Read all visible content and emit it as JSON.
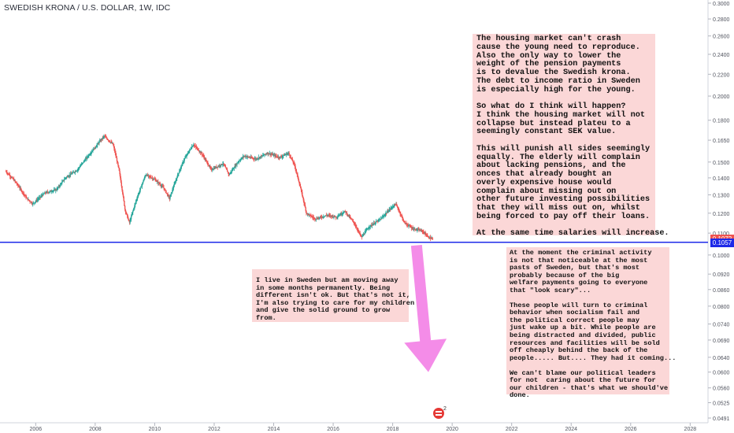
{
  "chart_data": {
    "type": "candlestick",
    "title": "SWEDISH KRONA / U.S. DOLLAR, 1W, IDC",
    "x_ticks": [
      "2006",
      "2008",
      "2010",
      "2012",
      "2014",
      "2016",
      "2018",
      "2020",
      "2022",
      "2024",
      "2026",
      "2028"
    ],
    "y_ticks": [
      "0.3000",
      "0.2800",
      "0.2600",
      "0.2400",
      "0.2200",
      "0.2000",
      "0.1800",
      "0.1650",
      "0.1500",
      "0.1400",
      "0.1300",
      "0.1200",
      "0.1100",
      "0.1000",
      "0.0920",
      "0.0860",
      "0.0800",
      "0.0740",
      "0.0690",
      "0.0640",
      "0.0600",
      "0.0560",
      "0.0525",
      "0.0491"
    ],
    "y_scale": "log",
    "ylim": [
      0.0491,
      0.3
    ],
    "xlim": [
      2004.8,
      2028.6
    ],
    "price_path": [
      {
        "x": 2005.0,
        "y": 0.144
      },
      {
        "x": 2005.3,
        "y": 0.138
      },
      {
        "x": 2005.7,
        "y": 0.128
      },
      {
        "x": 2005.9,
        "y": 0.125
      },
      {
        "x": 2006.3,
        "y": 0.131
      },
      {
        "x": 2006.7,
        "y": 0.133
      },
      {
        "x": 2007.0,
        "y": 0.14
      },
      {
        "x": 2007.4,
        "y": 0.145
      },
      {
        "x": 2007.8,
        "y": 0.155
      },
      {
        "x": 2008.0,
        "y": 0.16
      },
      {
        "x": 2008.3,
        "y": 0.168
      },
      {
        "x": 2008.6,
        "y": 0.162
      },
      {
        "x": 2008.8,
        "y": 0.145
      },
      {
        "x": 2009.0,
        "y": 0.122
      },
      {
        "x": 2009.15,
        "y": 0.115
      },
      {
        "x": 2009.4,
        "y": 0.128
      },
      {
        "x": 2009.7,
        "y": 0.142
      },
      {
        "x": 2010.0,
        "y": 0.139
      },
      {
        "x": 2010.3,
        "y": 0.134
      },
      {
        "x": 2010.5,
        "y": 0.128
      },
      {
        "x": 2010.8,
        "y": 0.143
      },
      {
        "x": 2011.0,
        "y": 0.152
      },
      {
        "x": 2011.3,
        "y": 0.162
      },
      {
        "x": 2011.6,
        "y": 0.155
      },
      {
        "x": 2011.9,
        "y": 0.145
      },
      {
        "x": 2012.3,
        "y": 0.149
      },
      {
        "x": 2012.5,
        "y": 0.142
      },
      {
        "x": 2012.8,
        "y": 0.15
      },
      {
        "x": 2013.0,
        "y": 0.154
      },
      {
        "x": 2013.4,
        "y": 0.152
      },
      {
        "x": 2013.8,
        "y": 0.156
      },
      {
        "x": 2014.2,
        "y": 0.153
      },
      {
        "x": 2014.5,
        "y": 0.156
      },
      {
        "x": 2014.7,
        "y": 0.148
      },
      {
        "x": 2014.9,
        "y": 0.134
      },
      {
        "x": 2015.1,
        "y": 0.12
      },
      {
        "x": 2015.4,
        "y": 0.117
      },
      {
        "x": 2015.8,
        "y": 0.119
      },
      {
        "x": 2016.1,
        "y": 0.118
      },
      {
        "x": 2016.4,
        "y": 0.121
      },
      {
        "x": 2016.7,
        "y": 0.115
      },
      {
        "x": 2016.95,
        "y": 0.108
      },
      {
        "x": 2017.2,
        "y": 0.113
      },
      {
        "x": 2017.6,
        "y": 0.117
      },
      {
        "x": 2017.9,
        "y": 0.122
      },
      {
        "x": 2018.1,
        "y": 0.125
      },
      {
        "x": 2018.4,
        "y": 0.115
      },
      {
        "x": 2018.7,
        "y": 0.112
      },
      {
        "x": 2019.0,
        "y": 0.111
      },
      {
        "x": 2019.2,
        "y": 0.108
      },
      {
        "x": 2019.35,
        "y": 0.1072
      }
    ],
    "horizontal_line": {
      "value": 0.1057,
      "color": "#1e2ae8"
    },
    "last_price": {
      "label": "0.1072",
      "color": "#ef5350"
    },
    "line_label": {
      "label": "0.1057",
      "color": "#1e2ae8"
    },
    "arrow": {
      "color": "#f48ce8",
      "from": {
        "x": 2018.8,
        "y": 0.1043
      },
      "to": {
        "x": 2019.2,
        "y": 0.06
      }
    },
    "annotations": {
      "right_top": "The housing market can't crash\ncause the young need to reproduce.\nAlso the only way to lower the\nweight of the pension payments\nis to devalue the Swedish krona.\nThe debt to income ratio in Sweden\nis especially high for the young.\n\nSo what do I think will happen?\nI think the housing market will not\ncollapse but instead plateu to a\nseemingly constant SEK value.\n\nThis will punish all sides seemingly\nequally. The elderly will complain\nabout lacking pensions, and the\nonces that already bought an\noverly expensive house would\ncomplain about missing out on\nother future investing possibilities\nthat they will miss out on, whilst\nbeing forced to pay off their loans.\n\nAt the same time salaries will increase.",
      "left": "I live in Sweden but am moving away\nin some months permanently. Being\ndifferent isn't ok. But that's not it,\nI'm also trying to care for my children\nand give the solid ground to grow\nfrom.",
      "right_bottom": "At the moment the criminal activity\nis not that noticeable at the most\npasts of Sweden, but that's most\nprobably because of the big\nwelfare payments going to everyone\nthat \"look scary\"...\n\nThese people will turn to criminal\nbehavior when socialism fail and\nthe political correct people may\njust wake up a bit. While people are\nbeing distracted and divided, public\nresources and facilities will be sold\noff cheaply behind the back of the\npeople..... But.... They had it coming...\n\nWe can't blame our political leaders\nfor not  caring about the future for\nour children - that's what we should've\ndone."
    },
    "logo_badge": "2"
  }
}
